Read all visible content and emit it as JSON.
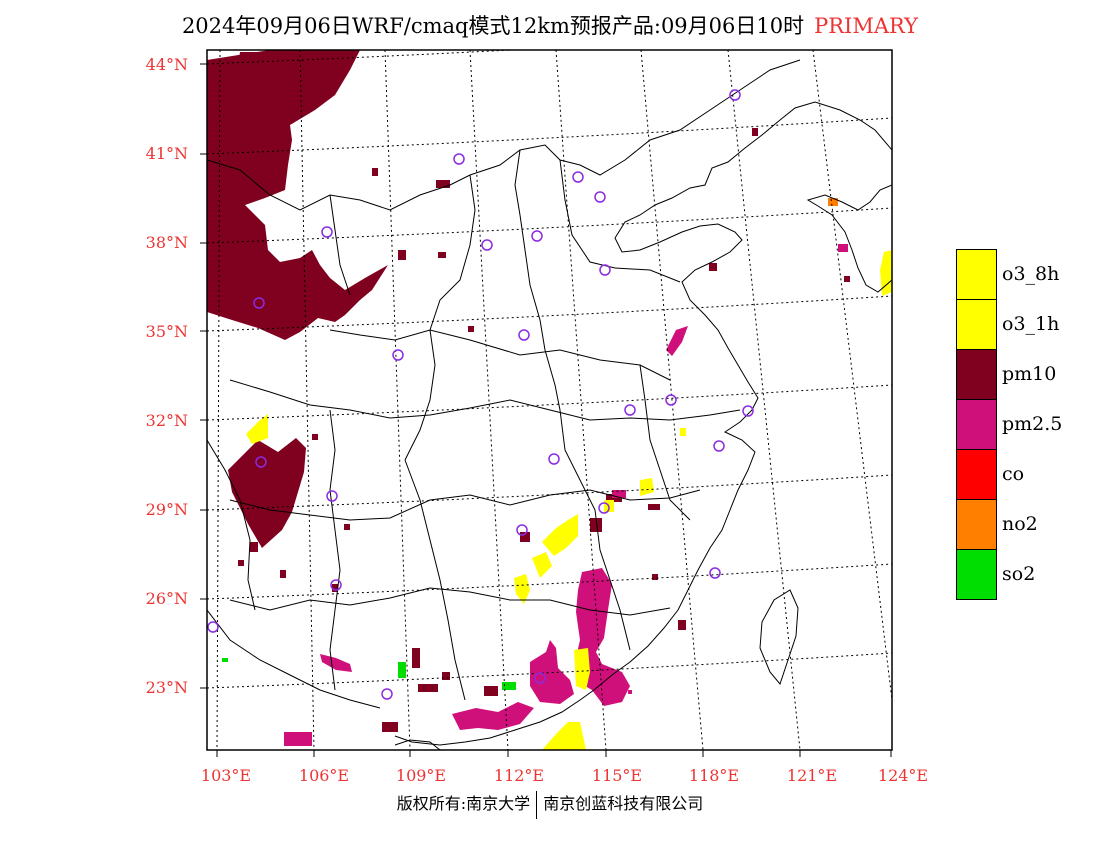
{
  "header": {
    "title": "2024年09月06日WRF/cmaq模式12km预报产品:09月06日10时",
    "mode": "PRIMARY"
  },
  "map": {
    "lat_labels": [
      "44°N",
      "41°N",
      "38°N",
      "35°N",
      "32°N",
      "29°N",
      "26°N",
      "23°N"
    ],
    "lon_labels": [
      "103°E",
      "106°E",
      "109°E",
      "112°E",
      "115°E",
      "118°E",
      "121°E",
      "124°E"
    ],
    "colors": {
      "pm10": "#800020",
      "pm25": "#d0107a",
      "o3": "#ffff00",
      "no2": "#ff8000",
      "so2": "#00dd00",
      "station": "#8a2be2"
    }
  },
  "legend": {
    "items": [
      {
        "label": "o3_8h",
        "color": "#ffff00"
      },
      {
        "label": "o3_1h",
        "color": "#ffff00"
      },
      {
        "label": "pm10",
        "color": "#800020"
      },
      {
        "label": "pm2.5",
        "color": "#d0107a"
      },
      {
        "label": "co",
        "color": "#ff0000"
      },
      {
        "label": "no2",
        "color": "#ff8000"
      },
      {
        "label": "so2",
        "color": "#00dd00"
      }
    ]
  },
  "footer": {
    "left": "版权所有:南京大学",
    "right": "南京创蓝科技有限公司"
  }
}
